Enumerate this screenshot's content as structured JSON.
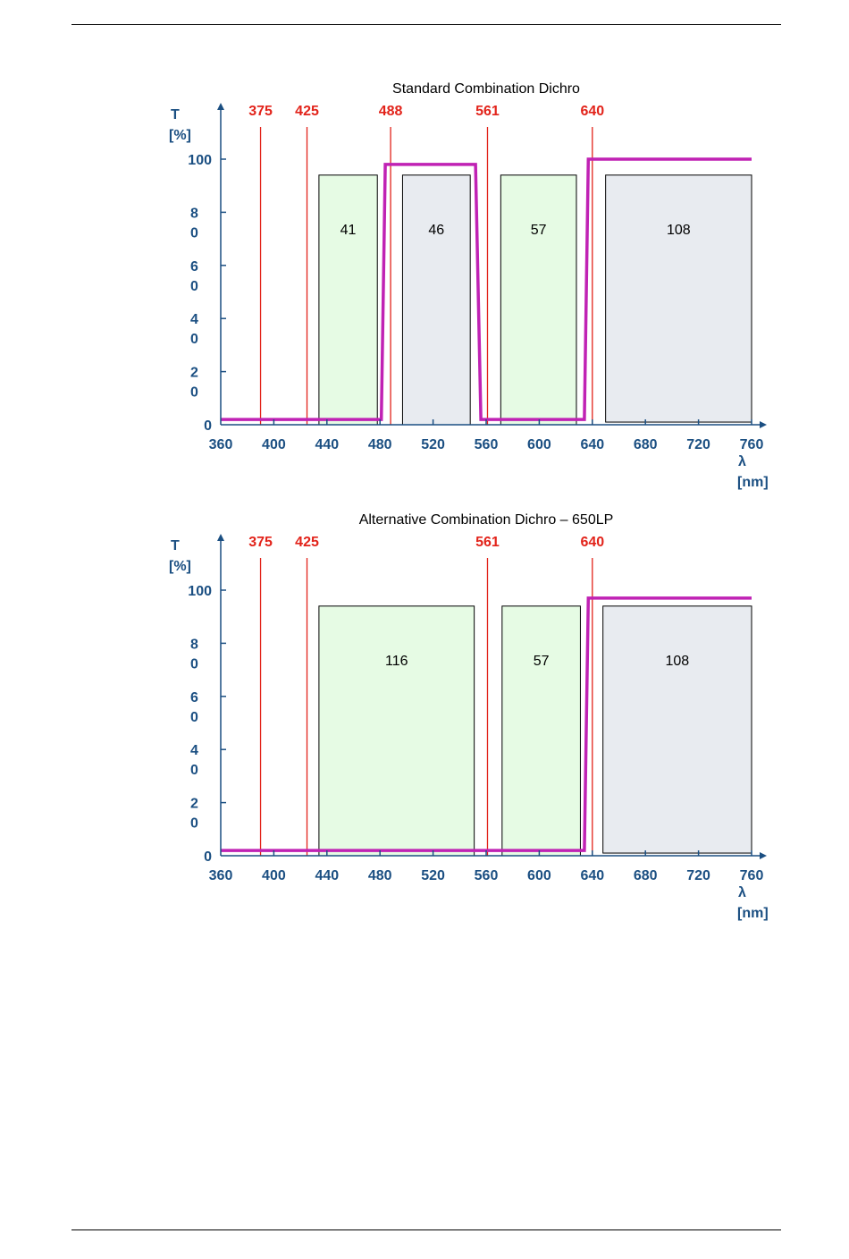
{
  "colors": {
    "axis": "#1b4f82",
    "laser": "#e2231a",
    "curve": "#c022b4",
    "box_green": "#e6fbe4",
    "box_gray": "#e8ebf0",
    "box_border": "#000000"
  },
  "chart_data": [
    {
      "type": "line",
      "title": "Standard Combination Dichro",
      "ylabel": "T",
      "yunit": "[%]",
      "xlabel": "λ",
      "xunit": "[nm]",
      "xlim": [
        360,
        760
      ],
      "ylim": [
        0,
        100
      ],
      "x_ticks": [
        "360",
        "400",
        "440",
        "480",
        "520",
        "560",
        "600",
        "640",
        "680",
        "720",
        "760"
      ],
      "y_ticks": [
        {
          "value": 0,
          "lines": [
            "0"
          ]
        },
        {
          "value": 20,
          "lines": [
            "2",
            "0"
          ]
        },
        {
          "value": 40,
          "lines": [
            "4",
            "0"
          ]
        },
        {
          "value": 60,
          "lines": [
            "6",
            "0"
          ]
        },
        {
          "value": 80,
          "lines": [
            "8",
            "0"
          ]
        },
        {
          "value": 100,
          "lines": [
            "100"
          ]
        }
      ],
      "lasers": [
        {
          "label": "375",
          "x": 390
        },
        {
          "label": "425",
          "x": 425
        },
        {
          "label": "488",
          "x": 488
        },
        {
          "label": "561",
          "x": 561
        },
        {
          "label": "640",
          "x": 640
        }
      ],
      "filters": [
        {
          "label": "41",
          "x0": 434,
          "x1": 478,
          "top": 94,
          "bottom": 0,
          "color": "green"
        },
        {
          "label": "46",
          "x0": 497,
          "x1": 548,
          "top": 94,
          "bottom": 0,
          "color": "gray"
        },
        {
          "label": "57",
          "x0": 571,
          "x1": 628,
          "top": 94,
          "bottom": 0,
          "color": "green"
        },
        {
          "label": "108",
          "x0": 650,
          "x1": 760,
          "top": 94,
          "bottom": 1,
          "color": "gray"
        }
      ],
      "series": [
        {
          "x": [
            360,
            481,
            484,
            552,
            556,
            634,
            637,
            760
          ],
          "y": [
            2,
            2,
            98,
            98,
            2,
            2,
            100,
            100
          ]
        }
      ]
    },
    {
      "type": "line",
      "title": "Alternative Combination Dichro – 650LP",
      "ylabel": "T",
      "yunit": "[%]",
      "xlabel": "λ",
      "xunit": "[nm]",
      "xlim": [
        360,
        760
      ],
      "ylim": [
        0,
        100
      ],
      "x_ticks": [
        "360",
        "400",
        "440",
        "480",
        "520",
        "560",
        "600",
        "640",
        "680",
        "720",
        "760"
      ],
      "y_ticks": [
        {
          "value": 0,
          "lines": [
            "0"
          ]
        },
        {
          "value": 20,
          "lines": [
            "2",
            "0"
          ]
        },
        {
          "value": 40,
          "lines": [
            "4",
            "0"
          ]
        },
        {
          "value": 60,
          "lines": [
            "6",
            "0"
          ]
        },
        {
          "value": 80,
          "lines": [
            "8",
            "0"
          ]
        },
        {
          "value": 100,
          "lines": [
            "100"
          ]
        }
      ],
      "lasers": [
        {
          "label": "375",
          "x": 390
        },
        {
          "label": "425",
          "x": 425
        },
        {
          "label": "561",
          "x": 561
        },
        {
          "label": "640",
          "x": 640
        }
      ],
      "filters": [
        {
          "label": "116",
          "x0": 434,
          "x1": 551,
          "top": 94,
          "bottom": 0,
          "color": "green"
        },
        {
          "label": "57",
          "x0": 572,
          "x1": 631,
          "top": 94,
          "bottom": 0,
          "color": "green"
        },
        {
          "label": "108",
          "x0": 648,
          "x1": 760,
          "top": 94,
          "bottom": 1,
          "color": "gray"
        }
      ],
      "series": [
        {
          "x": [
            360,
            480,
            634,
            637,
            760
          ],
          "y": [
            2,
            2,
            2,
            97,
            97
          ]
        }
      ]
    }
  ]
}
